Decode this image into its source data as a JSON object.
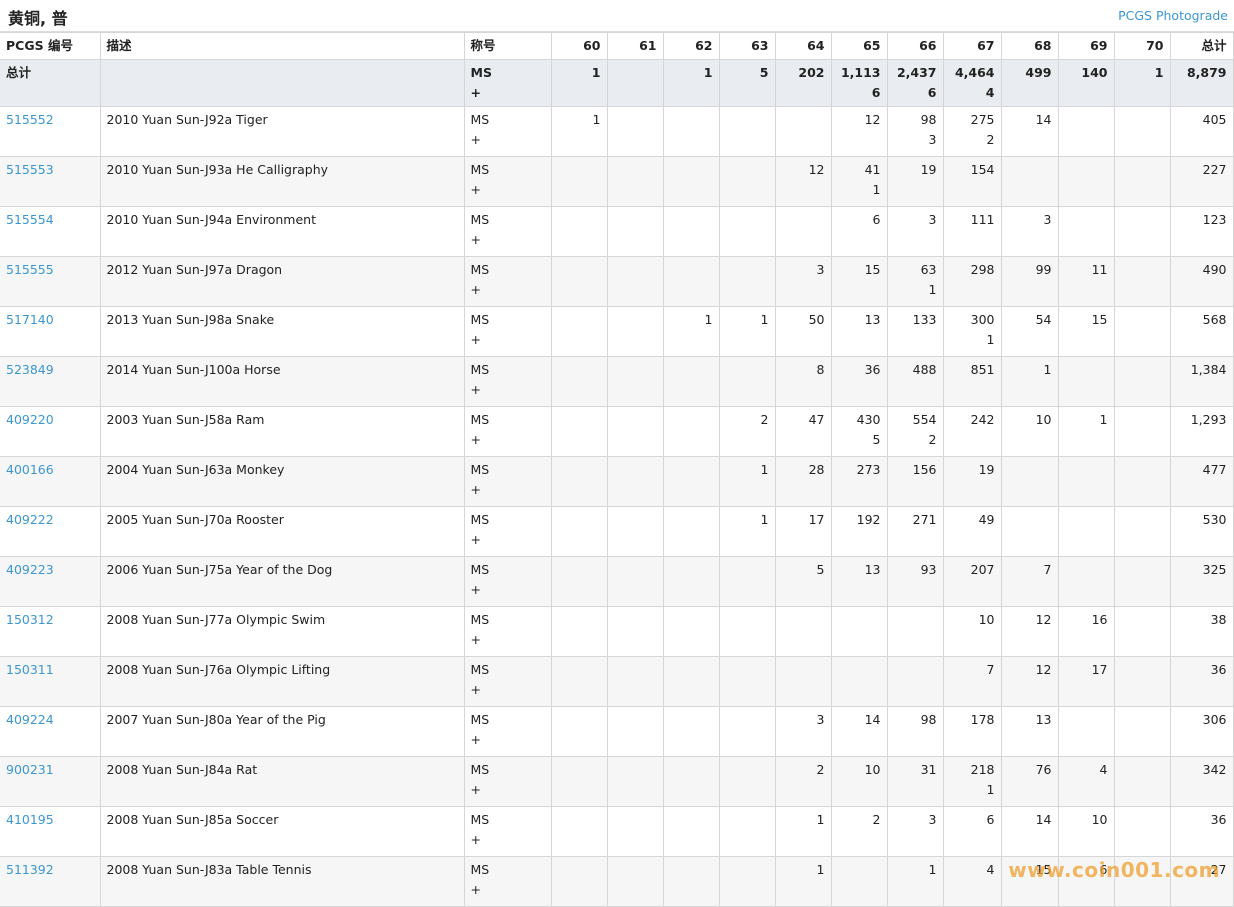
{
  "header": {
    "title": "黄铜, 普",
    "link": "PCGS Photograde"
  },
  "table": {
    "columns": [
      "PCGS 编号",
      "描述",
      "称号",
      "60",
      "61",
      "62",
      "63",
      "64",
      "65",
      "66",
      "67",
      "68",
      "69",
      "70",
      "总计"
    ],
    "total_row": {
      "id": "总计",
      "designation": [
        "MS",
        "+"
      ],
      "grades": [
        "1",
        null,
        "1",
        "5",
        "202",
        [
          "1,113",
          "6"
        ],
        [
          "2,437",
          "6"
        ],
        [
          "4,464",
          "4"
        ],
        "499",
        "140",
        "1"
      ],
      "total": "8,879"
    },
    "rows": [
      {
        "id": "515552",
        "desc": "2010 Yuan Sun-J92a Tiger",
        "designation": [
          "MS",
          "+"
        ],
        "grades": [
          "1",
          null,
          null,
          null,
          null,
          "12",
          [
            "98",
            "3"
          ],
          [
            "275",
            "2"
          ],
          "14",
          null,
          null
        ],
        "total": "405"
      },
      {
        "id": "515553",
        "desc": "2010 Yuan Sun-J93a He Calligraphy",
        "designation": [
          "MS",
          "+"
        ],
        "grades": [
          null,
          null,
          null,
          null,
          "12",
          [
            "41",
            "1"
          ],
          "19",
          "154",
          null,
          null,
          null
        ],
        "total": "227"
      },
      {
        "id": "515554",
        "desc": "2010 Yuan Sun-J94a Environment",
        "designation": [
          "MS",
          "+"
        ],
        "grades": [
          null,
          null,
          null,
          null,
          null,
          "6",
          "3",
          "111",
          "3",
          null,
          null
        ],
        "total": "123"
      },
      {
        "id": "515555",
        "desc": "2012 Yuan Sun-J97a Dragon",
        "designation": [
          "MS",
          "+"
        ],
        "grades": [
          null,
          null,
          null,
          null,
          "3",
          "15",
          [
            "63",
            "1"
          ],
          "298",
          "99",
          "11",
          null
        ],
        "total": "490"
      },
      {
        "id": "517140",
        "desc": "2013 Yuan Sun-J98a Snake",
        "designation": [
          "MS",
          "+"
        ],
        "grades": [
          null,
          null,
          "1",
          "1",
          "50",
          "13",
          "133",
          [
            "300",
            "1"
          ],
          "54",
          "15",
          null
        ],
        "total": "568"
      },
      {
        "id": "523849",
        "desc": "2014 Yuan Sun-J100a Horse",
        "designation": [
          "MS",
          "+"
        ],
        "grades": [
          null,
          null,
          null,
          null,
          "8",
          "36",
          "488",
          "851",
          "1",
          null,
          null
        ],
        "total": "1,384"
      },
      {
        "id": "409220",
        "desc": "2003 Yuan Sun-J58a Ram",
        "designation": [
          "MS",
          "+"
        ],
        "grades": [
          null,
          null,
          null,
          "2",
          "47",
          [
            "430",
            "5"
          ],
          [
            "554",
            "2"
          ],
          "242",
          "10",
          "1",
          null
        ],
        "total": "1,293"
      },
      {
        "id": "400166",
        "desc": "2004 Yuan Sun-J63a Monkey",
        "designation": [
          "MS",
          "+"
        ],
        "grades": [
          null,
          null,
          null,
          "1",
          "28",
          "273",
          "156",
          "19",
          null,
          null,
          null
        ],
        "total": "477"
      },
      {
        "id": "409222",
        "desc": "2005 Yuan Sun-J70a Rooster",
        "designation": [
          "MS",
          "+"
        ],
        "grades": [
          null,
          null,
          null,
          "1",
          "17",
          "192",
          "271",
          "49",
          null,
          null,
          null
        ],
        "total": "530"
      },
      {
        "id": "409223",
        "desc": "2006 Yuan Sun-J75a Year of the Dog",
        "designation": [
          "MS",
          "+"
        ],
        "grades": [
          null,
          null,
          null,
          null,
          "5",
          "13",
          "93",
          "207",
          "7",
          null,
          null
        ],
        "total": "325"
      },
      {
        "id": "150312",
        "desc": "2008 Yuan Sun-J77a Olympic Swim",
        "designation": [
          "MS",
          "+"
        ],
        "grades": [
          null,
          null,
          null,
          null,
          null,
          null,
          null,
          "10",
          "12",
          "16",
          null
        ],
        "total": "38"
      },
      {
        "id": "150311",
        "desc": "2008 Yuan Sun-J76a Olympic Lifting",
        "designation": [
          "MS",
          "+"
        ],
        "grades": [
          null,
          null,
          null,
          null,
          null,
          null,
          null,
          "7",
          "12",
          "17",
          null
        ],
        "total": "36"
      },
      {
        "id": "409224",
        "desc": "2007 Yuan Sun-J80a Year of the Pig",
        "designation": [
          "MS",
          "+"
        ],
        "grades": [
          null,
          null,
          null,
          null,
          "3",
          "14",
          "98",
          "178",
          "13",
          null,
          null
        ],
        "total": "306"
      },
      {
        "id": "900231",
        "desc": "2008 Yuan Sun-J84a Rat",
        "designation": [
          "MS",
          "+"
        ],
        "grades": [
          null,
          null,
          null,
          null,
          "2",
          "10",
          "31",
          [
            "218",
            "1"
          ],
          "76",
          "4",
          null
        ],
        "total": "342"
      },
      {
        "id": "410195",
        "desc": "2008 Yuan Sun-J85a Soccer",
        "designation": [
          "MS",
          "+"
        ],
        "grades": [
          null,
          null,
          null,
          null,
          "1",
          "2",
          "3",
          "6",
          "14",
          "10",
          null
        ],
        "total": "36"
      },
      {
        "id": "511392",
        "desc": "2008 Yuan Sun-J83a Table Tennis",
        "designation": [
          "MS",
          "+"
        ],
        "grades": [
          null,
          null,
          null,
          null,
          "1",
          null,
          "1",
          "4",
          "15",
          "6",
          null
        ],
        "total": "27"
      }
    ]
  },
  "watermark": "www.coin001.com"
}
